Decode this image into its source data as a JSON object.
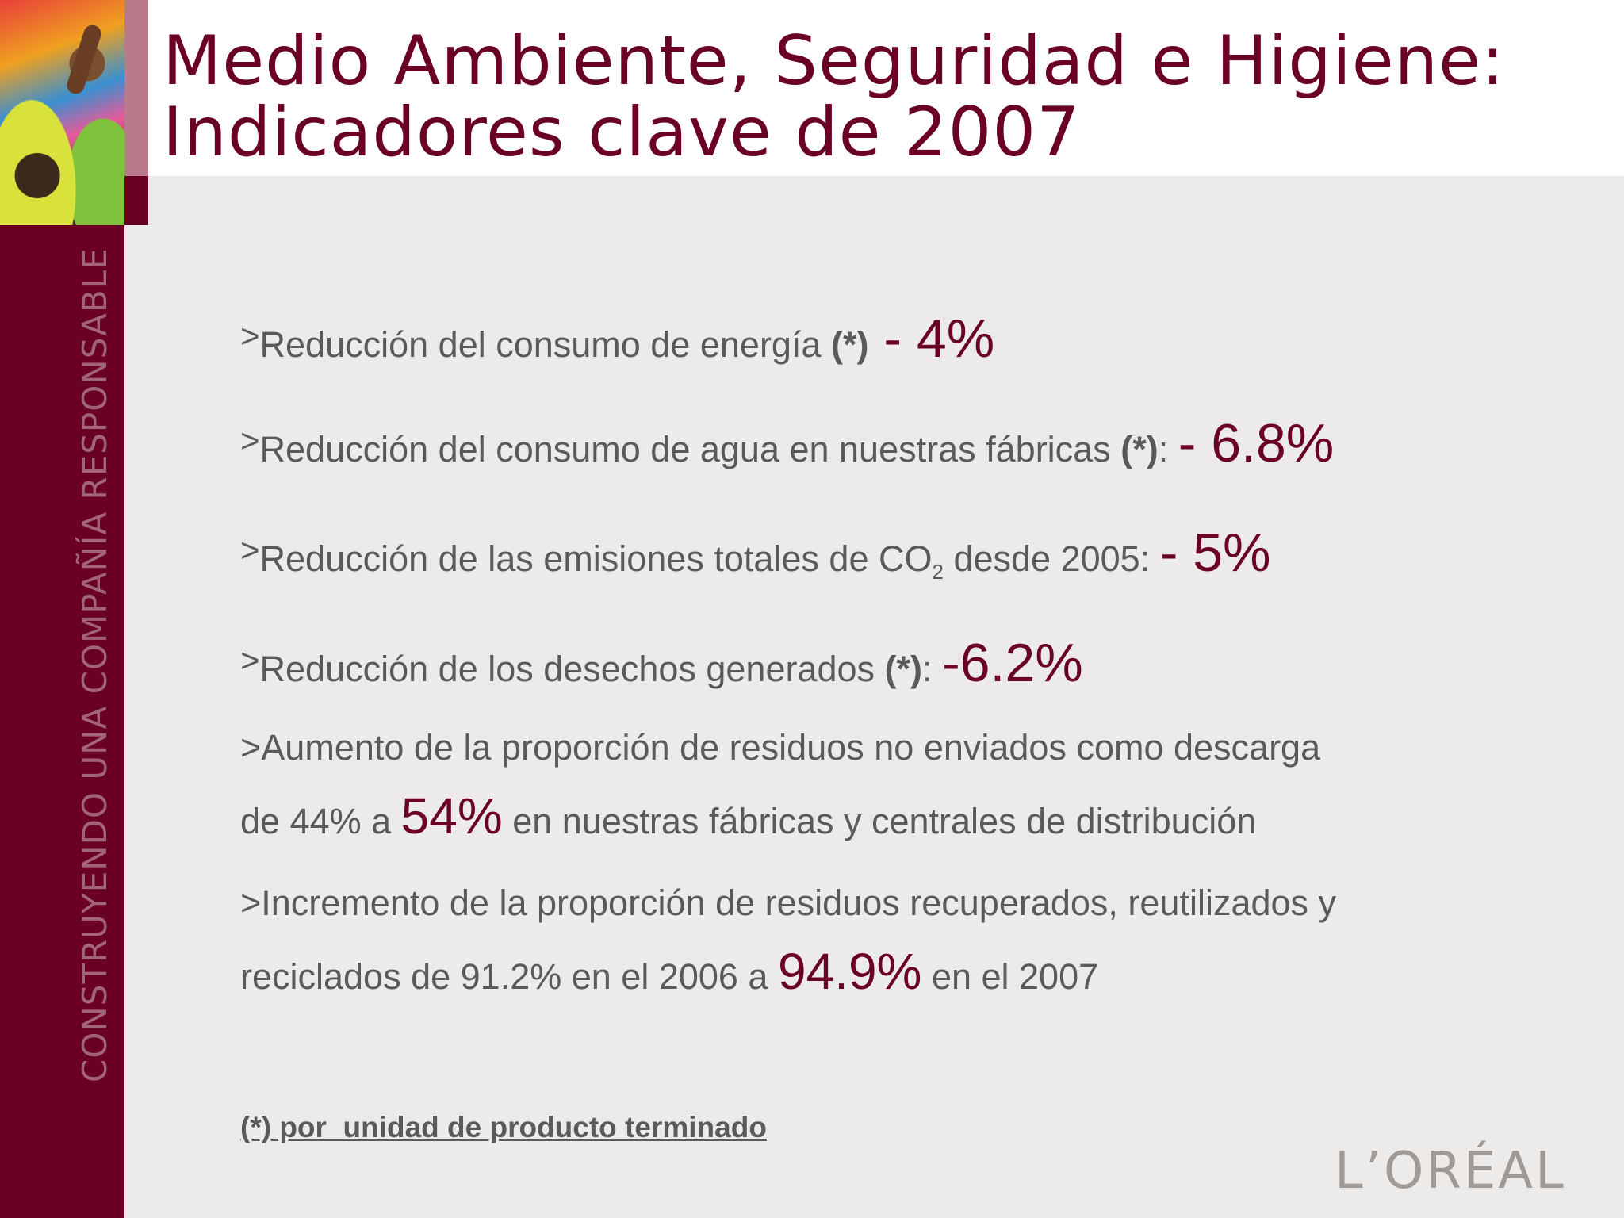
{
  "header": {
    "title_line1": "Medio Ambiente, Seguridad e Higiene:",
    "title_line2": "Indicadores clave de 2007"
  },
  "sidebar": {
    "vertical_text": "CONSTRUYENDO UNA COMPAÑÍA RESPONSABLE",
    "photo_icon": "children-photo"
  },
  "bullets": {
    "marker": ">",
    "b1": {
      "text": "Reducción del consumo de energía ",
      "note": "(*)",
      "value": " - 4%"
    },
    "b2": {
      "text": "Reducción del consumo de agua en nuestras fábricas ",
      "note": "(*)",
      "sep": ": ",
      "value": "- 6.8%"
    },
    "b3": {
      "text_before": "Reducción de las emisiones totales de CO",
      "sub": "2",
      "text_after": " desde 2005: ",
      "value": "- 5%"
    },
    "b4": {
      "text": "Reducción de los desechos generados ",
      "note": "(*)",
      "sep": ": ",
      "value": "-6.2%"
    },
    "b5": {
      "line1": "Aumento de la proporción de residuos no enviados como descarga",
      "line2_before": "de 44% a ",
      "value": "54%",
      "line2_after": " en nuestras fábricas y centrales de distribución"
    },
    "b6": {
      "line1": "Incremento de la proporción de residuos recuperados, reutilizados y",
      "line2_before": "reciclados de 91.2% en el 2006 a ",
      "value": "94.9%",
      "line2_after": " en el 2007"
    }
  },
  "footnote": "(*) por  unidad de producto terminado",
  "logo": "L’ORÉAL",
  "colors": {
    "brand": "#6b0026",
    "text": "#5a5a5a",
    "background": "#ecebea"
  }
}
